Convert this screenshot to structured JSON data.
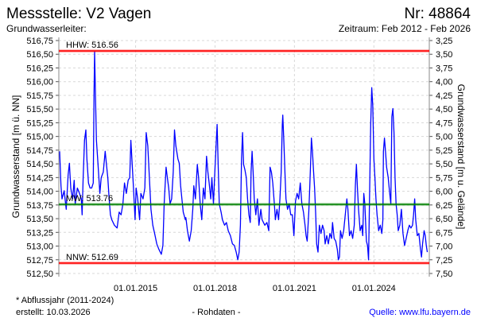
{
  "header": {
    "title": "Messstelle: V2 Vagen",
    "number": "Nr: 48864",
    "aquifer": "Grundwasserleiter:",
    "period": "Zeitraum: Feb 2012 - Feb 2026"
  },
  "footer": {
    "note": "* Abflussjahr (2011-2024)",
    "created": "erstellt:  10.03.2026",
    "rawdata": "- Rohdaten -",
    "source": "Quelle: www.lfu.bayern.de"
  },
  "colors": {
    "series": "#0000ff",
    "hhw": "#ff0000",
    "nnw": "#ff0000",
    "mw": "#008000",
    "source_link": "#0000ff"
  },
  "chart_data": {
    "type": "line",
    "ylabel": "Grundwasserstand [m ü. NN]",
    "ylabel_right": "Grundwasserstand [m u. Gelände]",
    "ylim": [
      512.5,
      516.75
    ],
    "ylim_right": [
      7.5,
      3.25
    ],
    "xlim": [
      2012.1,
      2026.2
    ],
    "grid": true,
    "y_ticks": [
      "516,75",
      "516,50",
      "516,25",
      "516,00",
      "515,75",
      "515,50",
      "515,25",
      "515,00",
      "514,75",
      "514,50",
      "514,25",
      "514,00",
      "513,75",
      "513,50",
      "513,25",
      "513,00",
      "512,75",
      "512,50"
    ],
    "y_ticks_right": [
      "3,25",
      "3,50",
      "3,75",
      "4,00",
      "4,25",
      "4,50",
      "4,75",
      "5,00",
      "5,25",
      "5,50",
      "5,75",
      "6,00",
      "6,25",
      "6,50",
      "6,75",
      "7,00",
      "7,25",
      "7,50"
    ],
    "x_ticks": [
      {
        "label": "01.01.2015",
        "year": 2015.0
      },
      {
        "label": "01.01.2018",
        "year": 2018.0
      },
      {
        "label": "01.01.2021",
        "year": 2021.0
      },
      {
        "label": "01.01.2024",
        "year": 2024.0
      }
    ],
    "reference_lines": [
      {
        "label": "HHW: 516.56",
        "value": 516.56,
        "color": "#ff0000"
      },
      {
        "label": "MW: 513.76",
        "value": 513.76,
        "color": "#008000"
      },
      {
        "label": "NNW: 512.69",
        "value": 512.69,
        "color": "#ff0000"
      }
    ],
    "series": [
      {
        "name": "Grundwasserstand",
        "points": [
          [
            2012.13,
            514.73
          ],
          [
            2012.18,
            514.1
          ],
          [
            2012.22,
            513.86
          ],
          [
            2012.3,
            514.01
          ],
          [
            2012.38,
            513.67
          ],
          [
            2012.45,
            514.3
          ],
          [
            2012.5,
            514.51
          ],
          [
            2012.55,
            514.06
          ],
          [
            2012.62,
            513.86
          ],
          [
            2012.68,
            514.2
          ],
          [
            2012.72,
            513.77
          ],
          [
            2012.8,
            514.06
          ],
          [
            2012.88,
            513.96
          ],
          [
            2012.95,
            513.86
          ],
          [
            2012.98,
            513.57
          ],
          [
            2013.02,
            514.25
          ],
          [
            2013.07,
            514.93
          ],
          [
            2013.12,
            515.12
          ],
          [
            2013.16,
            514.59
          ],
          [
            2013.22,
            514.15
          ],
          [
            2013.28,
            514.06
          ],
          [
            2013.34,
            514.06
          ],
          [
            2013.4,
            514.15
          ],
          [
            2013.43,
            515.8
          ],
          [
            2013.45,
            516.55
          ],
          [
            2013.48,
            515.8
          ],
          [
            2013.52,
            514.93
          ],
          [
            2013.58,
            514.49
          ],
          [
            2013.65,
            513.96
          ],
          [
            2013.7,
            514.25
          ],
          [
            2013.78,
            514.35
          ],
          [
            2013.85,
            514.73
          ],
          [
            2013.9,
            514.49
          ],
          [
            2013.95,
            514.25
          ],
          [
            2014.0,
            513.86
          ],
          [
            2014.05,
            513.57
          ],
          [
            2014.1,
            513.48
          ],
          [
            2014.2,
            513.38
          ],
          [
            2014.3,
            513.33
          ],
          [
            2014.38,
            513.62
          ],
          [
            2014.45,
            513.57
          ],
          [
            2014.52,
            513.77
          ],
          [
            2014.58,
            514.15
          ],
          [
            2014.65,
            513.96
          ],
          [
            2014.72,
            514.2
          ],
          [
            2014.78,
            514.25
          ],
          [
            2014.82,
            514.93
          ],
          [
            2014.86,
            514.59
          ],
          [
            2014.92,
            514.06
          ],
          [
            2014.98,
            513.48
          ],
          [
            2015.02,
            514.06
          ],
          [
            2015.08,
            513.86
          ],
          [
            2015.15,
            513.48
          ],
          [
            2015.2,
            513.96
          ],
          [
            2015.28,
            513.86
          ],
          [
            2015.35,
            514.06
          ],
          [
            2015.4,
            515.07
          ],
          [
            2015.46,
            514.83
          ],
          [
            2015.52,
            514.25
          ],
          [
            2015.58,
            513.67
          ],
          [
            2015.65,
            513.38
          ],
          [
            2015.72,
            513.23
          ],
          [
            2015.8,
            513.04
          ],
          [
            2015.88,
            512.94
          ],
          [
            2015.97,
            512.85
          ],
          [
            2016.03,
            513.01
          ],
          [
            2016.08,
            513.77
          ],
          [
            2016.15,
            514.44
          ],
          [
            2016.2,
            514.25
          ],
          [
            2016.25,
            514.06
          ],
          [
            2016.3,
            513.77
          ],
          [
            2016.36,
            513.86
          ],
          [
            2016.42,
            514.35
          ],
          [
            2016.47,
            515.12
          ],
          [
            2016.52,
            514.83
          ],
          [
            2016.6,
            514.59
          ],
          [
            2016.65,
            514.51
          ],
          [
            2016.7,
            514.1
          ],
          [
            2016.75,
            513.86
          ],
          [
            2016.8,
            513.62
          ],
          [
            2016.88,
            513.48
          ],
          [
            2016.9,
            513.52
          ],
          [
            2016.96,
            513.28
          ],
          [
            2017.03,
            513.09
          ],
          [
            2017.1,
            513.28
          ],
          [
            2017.16,
            513.67
          ],
          [
            2017.2,
            514.1
          ],
          [
            2017.26,
            513.86
          ],
          [
            2017.33,
            514.49
          ],
          [
            2017.38,
            514.25
          ],
          [
            2017.44,
            513.77
          ],
          [
            2017.5,
            513.48
          ],
          [
            2017.56,
            514.06
          ],
          [
            2017.62,
            513.86
          ],
          [
            2017.68,
            514.64
          ],
          [
            2017.73,
            514.35
          ],
          [
            2017.78,
            514.15
          ],
          [
            2017.84,
            513.86
          ],
          [
            2017.88,
            514.25
          ],
          [
            2017.94,
            513.77
          ],
          [
            2018.0,
            514.44
          ],
          [
            2018.04,
            514.83
          ],
          [
            2018.08,
            515.22
          ],
          [
            2018.12,
            514.44
          ],
          [
            2018.16,
            513.77
          ],
          [
            2018.23,
            513.62
          ],
          [
            2018.28,
            513.48
          ],
          [
            2018.36,
            513.38
          ],
          [
            2018.43,
            513.43
          ],
          [
            2018.5,
            513.28
          ],
          [
            2018.58,
            513.19
          ],
          [
            2018.66,
            513.04
          ],
          [
            2018.73,
            513.01
          ],
          [
            2018.8,
            512.89
          ],
          [
            2018.86,
            512.75
          ],
          [
            2018.91,
            512.89
          ],
          [
            2018.96,
            513.38
          ],
          [
            2019.0,
            514.59
          ],
          [
            2019.04,
            515.07
          ],
          [
            2019.08,
            514.49
          ],
          [
            2019.13,
            514.39
          ],
          [
            2019.18,
            514.25
          ],
          [
            2019.23,
            513.86
          ],
          [
            2019.28,
            513.57
          ],
          [
            2019.33,
            513.43
          ],
          [
            2019.36,
            514.35
          ],
          [
            2019.4,
            514.73
          ],
          [
            2019.44,
            514.35
          ],
          [
            2019.48,
            513.86
          ],
          [
            2019.54,
            513.57
          ],
          [
            2019.6,
            513.86
          ],
          [
            2019.66,
            513.38
          ],
          [
            2019.73,
            513.67
          ],
          [
            2019.78,
            513.48
          ],
          [
            2019.88,
            513.38
          ],
          [
            2019.96,
            513.43
          ],
          [
            2020.03,
            513.28
          ],
          [
            2020.08,
            514.44
          ],
          [
            2020.13,
            514.35
          ],
          [
            2020.18,
            514.15
          ],
          [
            2020.24,
            513.77
          ],
          [
            2020.28,
            513.48
          ],
          [
            2020.34,
            513.67
          ],
          [
            2020.4,
            513.48
          ],
          [
            2020.45,
            513.86
          ],
          [
            2020.5,
            514.35
          ],
          [
            2020.54,
            515.22
          ],
          [
            2020.56,
            515.39
          ],
          [
            2020.6,
            514.93
          ],
          [
            2020.64,
            514.35
          ],
          [
            2020.68,
            513.86
          ],
          [
            2020.74,
            513.67
          ],
          [
            2020.8,
            513.77
          ],
          [
            2020.86,
            513.57
          ],
          [
            2020.92,
            513.57
          ],
          [
            2020.98,
            513.19
          ],
          [
            2021.04,
            513.82
          ],
          [
            2021.1,
            513.96
          ],
          [
            2021.16,
            513.86
          ],
          [
            2021.22,
            514.15
          ],
          [
            2021.28,
            513.77
          ],
          [
            2021.34,
            513.62
          ],
          [
            2021.4,
            513.38
          ],
          [
            2021.44,
            513.19
          ],
          [
            2021.48,
            513.09
          ],
          [
            2021.54,
            513.62
          ],
          [
            2021.58,
            514.1
          ],
          [
            2021.62,
            514.64
          ],
          [
            2021.64,
            514.97
          ],
          [
            2021.68,
            514.73
          ],
          [
            2021.72,
            514.39
          ],
          [
            2021.76,
            514.06
          ],
          [
            2021.8,
            513.62
          ],
          [
            2021.84,
            513.04
          ],
          [
            2021.89,
            512.89
          ],
          [
            2021.94,
            513.38
          ],
          [
            2022.0,
            513.23
          ],
          [
            2022.06,
            513.38
          ],
          [
            2022.12,
            513.28
          ],
          [
            2022.16,
            513.04
          ],
          [
            2022.22,
            513.19
          ],
          [
            2022.28,
            513.04
          ],
          [
            2022.34,
            513.23
          ],
          [
            2022.4,
            513.14
          ],
          [
            2022.44,
            513.43
          ],
          [
            2022.5,
            513.14
          ],
          [
            2022.56,
            513.09
          ],
          [
            2022.62,
            512.94
          ],
          [
            2022.66,
            512.75
          ],
          [
            2022.7,
            512.8
          ],
          [
            2022.74,
            513.28
          ],
          [
            2022.8,
            513.14
          ],
          [
            2022.86,
            513.28
          ],
          [
            2022.92,
            513.57
          ],
          [
            2022.98,
            513.86
          ],
          [
            2023.02,
            513.67
          ],
          [
            2023.08,
            513.19
          ],
          [
            2023.14,
            513.28
          ],
          [
            2023.2,
            513.14
          ],
          [
            2023.26,
            513.38
          ],
          [
            2023.3,
            514.1
          ],
          [
            2023.34,
            514.49
          ],
          [
            2023.38,
            514.06
          ],
          [
            2023.42,
            513.67
          ],
          [
            2023.48,
            513.28
          ],
          [
            2023.54,
            513.38
          ],
          [
            2023.58,
            513.19
          ],
          [
            2023.62,
            513.96
          ],
          [
            2023.66,
            513.77
          ],
          [
            2023.72,
            513.09
          ],
          [
            2023.76,
            513.01
          ],
          [
            2023.8,
            512.75
          ],
          [
            2023.84,
            513.96
          ],
          [
            2023.88,
            515.22
          ],
          [
            2023.92,
            515.89
          ],
          [
            2023.96,
            515.56
          ],
          [
            2024.0,
            514.59
          ],
          [
            2024.04,
            514.25
          ],
          [
            2024.08,
            513.86
          ],
          [
            2024.12,
            513.57
          ],
          [
            2024.18,
            513.28
          ],
          [
            2024.24,
            513.38
          ],
          [
            2024.3,
            513.23
          ],
          [
            2024.34,
            513.48
          ],
          [
            2024.36,
            514.73
          ],
          [
            2024.4,
            514.97
          ],
          [
            2024.44,
            514.73
          ],
          [
            2024.48,
            514.44
          ],
          [
            2024.54,
            514.25
          ],
          [
            2024.6,
            513.96
          ],
          [
            2024.64,
            513.77
          ],
          [
            2024.68,
            515.36
          ],
          [
            2024.72,
            515.51
          ],
          [
            2024.76,
            515.07
          ],
          [
            2024.8,
            514.25
          ],
          [
            2024.84,
            513.77
          ],
          [
            2024.88,
            513.57
          ],
          [
            2024.92,
            513.28
          ],
          [
            2024.98,
            513.38
          ],
          [
            2025.04,
            513.67
          ],
          [
            2025.1,
            513.23
          ],
          [
            2025.16,
            513.01
          ],
          [
            2025.22,
            513.14
          ],
          [
            2025.28,
            513.28
          ],
          [
            2025.34,
            513.38
          ],
          [
            2025.4,
            513.33
          ],
          [
            2025.46,
            513.38
          ],
          [
            2025.5,
            513.57
          ],
          [
            2025.54,
            513.86
          ],
          [
            2025.58,
            513.48
          ],
          [
            2025.64,
            513.19
          ],
          [
            2025.7,
            513.23
          ],
          [
            2025.76,
            512.94
          ],
          [
            2025.8,
            512.8
          ],
          [
            2025.84,
            513.04
          ],
          [
            2025.9,
            513.28
          ],
          [
            2025.94,
            513.19
          ],
          [
            2025.98,
            513.01
          ],
          [
            2026.02,
            512.89
          ]
        ]
      }
    ]
  }
}
